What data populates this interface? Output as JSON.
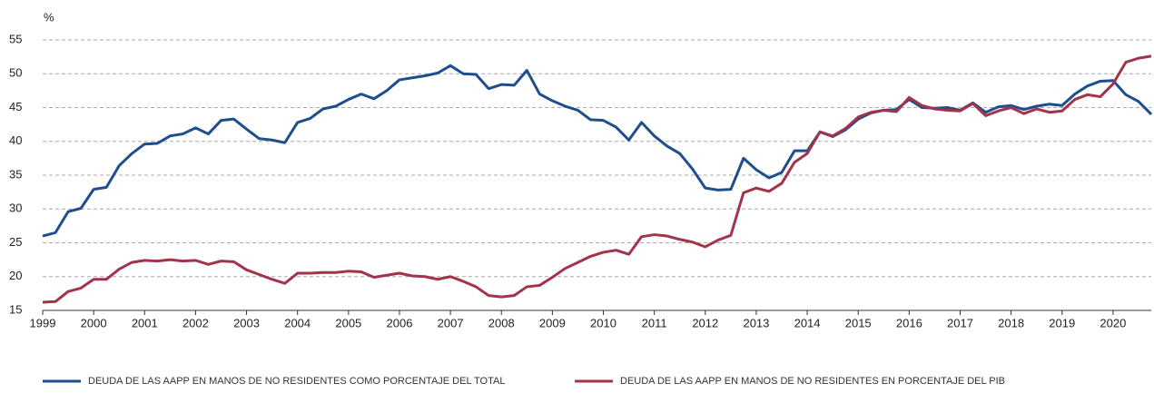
{
  "chart_data": {
    "type": "line",
    "y_label": "%",
    "x": [
      1999,
      1999.25,
      1999.5,
      1999.75,
      2000,
      2000.25,
      2000.5,
      2000.75,
      2001,
      2001.25,
      2001.5,
      2001.75,
      2002,
      2002.25,
      2002.5,
      2002.75,
      2003,
      2003.25,
      2003.5,
      2003.75,
      2004,
      2004.25,
      2004.5,
      2004.75,
      2005,
      2005.25,
      2005.5,
      2005.75,
      2006,
      2006.25,
      2006.5,
      2006.75,
      2007,
      2007.25,
      2007.5,
      2007.75,
      2008,
      2008.25,
      2008.5,
      2008.75,
      2009,
      2009.25,
      2009.5,
      2009.75,
      2010,
      2010.25,
      2010.5,
      2010.75,
      2011,
      2011.25,
      2011.5,
      2011.75,
      2012,
      2012.25,
      2012.5,
      2012.75,
      2013,
      2013.25,
      2013.5,
      2013.75,
      2014,
      2014.25,
      2014.5,
      2014.75,
      2015,
      2015.25,
      2015.5,
      2015.75,
      2016,
      2016.25,
      2016.5,
      2016.75,
      2017,
      2017.25,
      2017.5,
      2017.75,
      2018,
      2018.25,
      2018.5,
      2018.75,
      2019,
      2019.25,
      2019.5,
      2019.75,
      2020,
      2020.25,
      2020.5,
      2020.75
    ],
    "series": [
      {
        "name": "DEUDA DE LAS AAPP EN MANOS DE NO RESIDENTES COMO PORCENTAJE DEL TOTAL",
        "color": "#1f4e8c",
        "values": [
          26.0,
          26.5,
          29.6,
          30.1,
          32.9,
          33.2,
          36.4,
          38.2,
          39.6,
          39.7,
          40.8,
          41.1,
          42.0,
          41.1,
          43.1,
          43.3,
          41.8,
          40.4,
          40.2,
          39.8,
          42.8,
          43.4,
          44.8,
          45.2,
          46.2,
          47.0,
          46.3,
          47.5,
          49.1,
          49.4,
          49.7,
          50.1,
          51.2,
          50.0,
          49.9,
          47.8,
          48.4,
          48.3,
          50.5,
          47.0,
          46.0,
          45.2,
          44.6,
          43.2,
          43.1,
          42.1,
          40.2,
          42.8,
          40.8,
          39.3,
          38.2,
          35.9,
          33.1,
          32.8,
          32.9,
          37.5,
          35.8,
          34.6,
          35.4,
          38.6,
          38.6,
          41.4,
          40.7,
          41.7,
          43.3,
          44.2,
          44.6,
          44.7,
          46.2,
          45.0,
          44.9,
          45.0,
          44.6,
          45.7,
          44.3,
          45.1,
          45.3,
          44.7,
          45.2,
          45.5,
          45.3,
          47.0,
          48.2,
          48.9,
          49.0,
          46.9,
          45.9,
          44.0
        ]
      },
      {
        "name": "DEUDA DE LAS AAPP EN MANOS DE NO RESIDENTES EN PORCENTAJE DEL PIB",
        "color": "#a3334a",
        "values": [
          16.2,
          16.3,
          17.8,
          18.3,
          19.6,
          19.6,
          21.1,
          22.1,
          22.4,
          22.3,
          22.5,
          22.3,
          22.4,
          21.8,
          22.3,
          22.2,
          21.0,
          20.3,
          19.6,
          19.0,
          20.5,
          20.5,
          20.6,
          20.6,
          20.8,
          20.7,
          19.9,
          20.2,
          20.5,
          20.1,
          20.0,
          19.6,
          20.0,
          19.3,
          18.5,
          17.2,
          17.0,
          17.2,
          18.5,
          18.7,
          19.9,
          21.2,
          22.1,
          23.0,
          23.6,
          23.9,
          23.3,
          25.9,
          26.2,
          26.0,
          25.5,
          25.1,
          24.4,
          25.4,
          26.1,
          32.4,
          33.1,
          32.6,
          33.8,
          36.9,
          38.2,
          41.4,
          40.8,
          41.9,
          43.6,
          44.3,
          44.6,
          44.4,
          46.5,
          45.3,
          44.8,
          44.6,
          44.5,
          45.6,
          43.8,
          44.5,
          45.0,
          44.1,
          44.8,
          44.3,
          44.5,
          46.2,
          46.9,
          46.6,
          48.5,
          51.7,
          52.3,
          52.6
        ]
      }
    ],
    "xlim": [
      1999,
      2020.75
    ],
    "xticks": [
      1999,
      2000,
      2001,
      2002,
      2003,
      2004,
      2005,
      2006,
      2007,
      2008,
      2009,
      2010,
      2011,
      2012,
      2013,
      2014,
      2015,
      2016,
      2017,
      2018,
      2019,
      2020
    ],
    "ylim": [
      15,
      55
    ],
    "yticks": [
      15,
      20,
      25,
      30,
      35,
      40,
      45,
      50,
      55
    ],
    "grid": true,
    "legend": "bottom"
  }
}
